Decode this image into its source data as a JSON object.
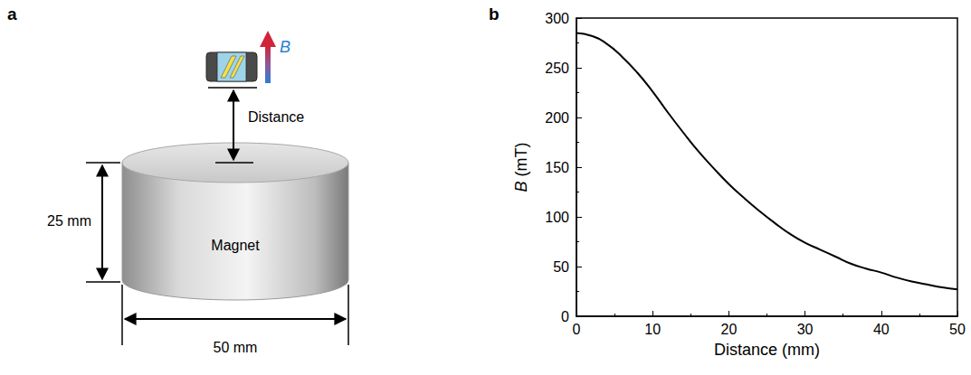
{
  "panel_labels": [
    "a",
    "b"
  ],
  "diagram": {
    "field_label": "B",
    "distance_label": "Distance",
    "height_label": "25 mm",
    "magnet_label": "Magnet",
    "diameter_label": "50 mm"
  },
  "chart_data": {
    "type": "line",
    "xlabel": "Distance (mm)",
    "ylabel": "B (mT)",
    "x": [
      0,
      2,
      4,
      6,
      8,
      10,
      12,
      14,
      16,
      18,
      20,
      22,
      24,
      26,
      28,
      30,
      32,
      34,
      36,
      38,
      40,
      42,
      44,
      46,
      48,
      50
    ],
    "values": [
      285,
      282,
      274,
      261,
      245,
      226,
      205,
      185,
      166,
      149,
      133,
      119,
      106,
      94,
      83,
      74,
      67,
      60,
      53,
      48,
      44,
      39,
      35,
      32,
      29,
      27
    ],
    "color": "#000000",
    "xlim": [
      0,
      50
    ],
    "xticks": [
      0,
      10,
      20,
      30,
      40,
      50
    ],
    "ylim": [
      0,
      300
    ],
    "yticks": [
      0,
      50,
      100,
      150,
      200,
      250,
      300
    ],
    "grid": false
  }
}
